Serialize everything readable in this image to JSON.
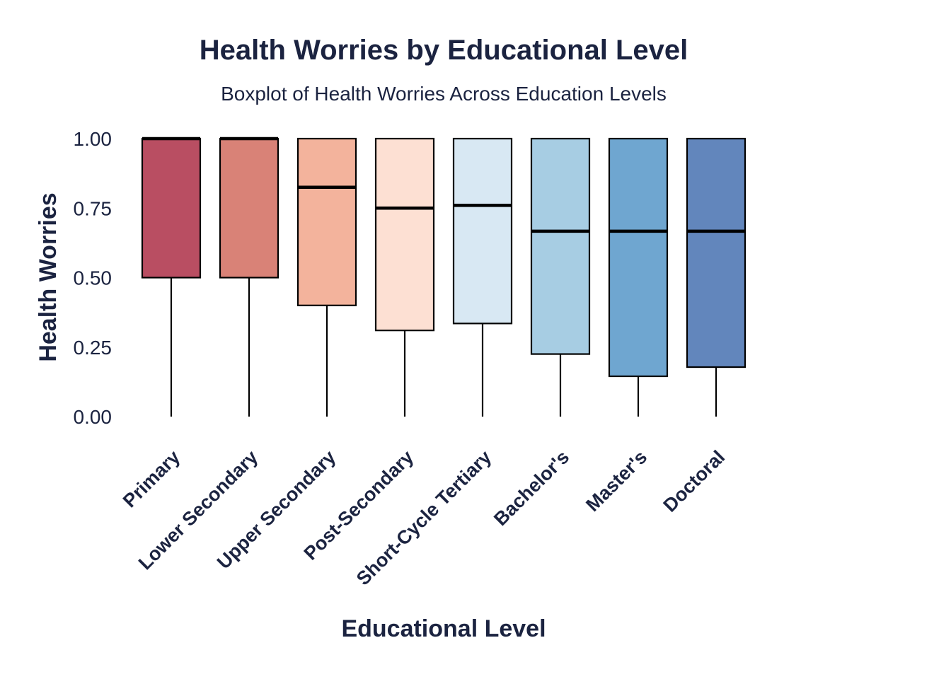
{
  "chart_data": {
    "type": "boxplot",
    "title": "Health Worries by Educational Level",
    "subtitle": "Boxplot of Health Worries Across Education Levels",
    "xlabel": "Educational Level",
    "ylabel": "Health Worries",
    "ylim": [
      0,
      1
    ],
    "yticks": [
      0,
      0.25,
      0.5,
      0.75,
      1.0
    ],
    "ytick_labels": [
      "0.00",
      "0.25",
      "0.50",
      "0.75",
      "1.00"
    ],
    "grid": false,
    "legend": "none",
    "categories": [
      "Primary",
      "Lower Secondary",
      "Upper Secondary",
      "Post-Secondary",
      "Short-Cycle Tertiary",
      "Bachelor's",
      "Master's",
      "Doctoral"
    ],
    "boxes": [
      {
        "category": "Primary",
        "min": 0.0,
        "q1": 0.5,
        "median": 1.0,
        "q3": 1.0,
        "max": 1.0,
        "color": "#b94e62"
      },
      {
        "category": "Lower Secondary",
        "min": 0.0,
        "q1": 0.5,
        "median": 1.0,
        "q3": 1.0,
        "max": 1.0,
        "color": "#d98277"
      },
      {
        "category": "Upper Secondary",
        "min": 0.0,
        "q1": 0.4,
        "median": 0.825,
        "q3": 1.0,
        "max": 1.0,
        "color": "#f3b39c"
      },
      {
        "category": "Post-Secondary",
        "min": 0.0,
        "q1": 0.31,
        "median": 0.75,
        "q3": 1.0,
        "max": 1.0,
        "color": "#fde0d3"
      },
      {
        "category": "Short-Cycle Tertiary",
        "min": 0.0,
        "q1": 0.335,
        "median": 0.76,
        "q3": 1.0,
        "max": 1.0,
        "color": "#d8e8f3"
      },
      {
        "category": "Bachelor's",
        "min": 0.0,
        "q1": 0.225,
        "median": 0.667,
        "q3": 1.0,
        "max": 1.0,
        "color": "#a7cde3"
      },
      {
        "category": "Master's",
        "min": 0.0,
        "q1": 0.145,
        "median": 0.667,
        "q3": 1.0,
        "max": 1.0,
        "color": "#6fa6d0"
      },
      {
        "category": "Doctoral",
        "min": 0.0,
        "q1": 0.178,
        "median": 0.667,
        "q3": 1.0,
        "max": 1.0,
        "color": "#6286bc"
      }
    ],
    "colors": {
      "text": "#1b2340",
      "outline": "#000000"
    }
  }
}
